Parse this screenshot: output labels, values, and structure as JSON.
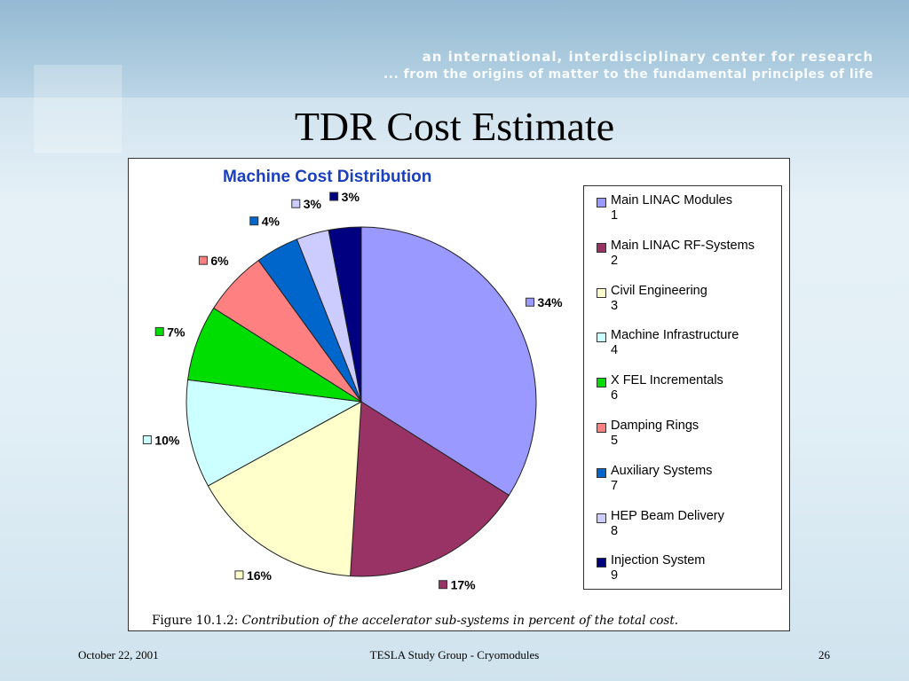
{
  "header": {
    "tagline_line1": "an international, interdisciplinary center for research",
    "tagline_line2": "... from the origins of matter to the fundamental principles of life"
  },
  "slide": {
    "title": "TDR Cost Estimate"
  },
  "figure": {
    "caption_label": "Figure 10.1.2:",
    "caption_text": "Contribution of the accelerator sub-systems in percent of the total cost."
  },
  "footer": {
    "date": "October 22, 2001",
    "center": "TESLA Study Group - Cryomodules",
    "page": "26"
  },
  "chart_data": {
    "type": "pie",
    "title": "Machine Cost Distribution",
    "legend_position": "right",
    "slices": [
      {
        "name": "Main LINAC Modules",
        "num": "1",
        "value": 34,
        "label": "34%",
        "color": "#9999ff"
      },
      {
        "name": "Main LINAC RF-Systems",
        "num": "2",
        "value": 17,
        "label": "17%",
        "color": "#993366"
      },
      {
        "name": "Civil Engineering",
        "num": "3",
        "value": 16,
        "label": "16%",
        "color": "#ffffcc"
      },
      {
        "name": "Machine Infrastructure",
        "num": "4",
        "value": 10,
        "label": "10%",
        "color": "#ccffff"
      },
      {
        "name": "X FEL Incrementals",
        "num": "6",
        "value": 7,
        "label": "7%",
        "color": "#00dd00"
      },
      {
        "name": "Damping   Rings",
        "num": "5",
        "value": 6,
        "label": "6%",
        "color": "#ff8080"
      },
      {
        "name": "Auxiliary Systems",
        "num": "7",
        "value": 4,
        "label": "4%",
        "color": "#0066cc"
      },
      {
        "name": "HEP Beam Delivery",
        "num": "8",
        "value": 3,
        "label": "3%",
        "color": "#ccccff"
      },
      {
        "name": "Injection System",
        "num": "9",
        "value": 3,
        "label": "3%",
        "color": "#000080"
      }
    ]
  }
}
